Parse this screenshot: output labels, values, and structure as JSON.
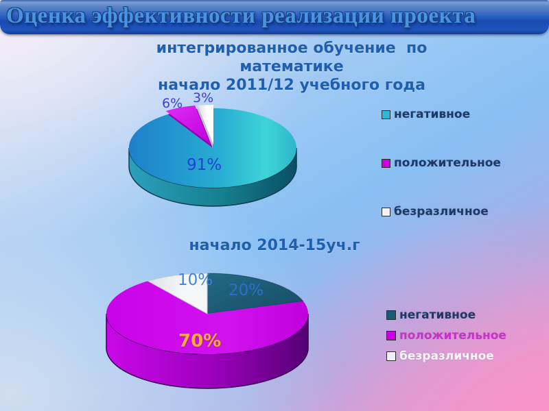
{
  "slide_title": "Оценка эффективности реализации проекта",
  "charts": [
    {
      "title": "интегрированное обучение  по\nматематике\nначало 2011/12 учебного года",
      "pct_labels": [
        "91%",
        "6%",
        "3%"
      ],
      "legend": [
        {
          "label": "негативное",
          "swatch": "#2fb6d9",
          "text_color": "#1d3a66"
        },
        {
          "label": "положительное",
          "swatch": "#cc00e6",
          "text_color": "#1d3a66"
        },
        {
          "label": "безразличное",
          "swatch": "#f2f2f2",
          "text_color": "#1d3a66"
        }
      ]
    },
    {
      "title": "начало 2014-15уч.г",
      "pct_labels": [
        "20%",
        "70%",
        "10%"
      ],
      "legend": [
        {
          "label": "негативное",
          "swatch": "#1b5a74",
          "text_color": "#1d3a66"
        },
        {
          "label": "положительное",
          "swatch": "#cc00e6",
          "text_color": "#c634c6"
        },
        {
          "label": "безразличное",
          "swatch": "#f0f0f2",
          "text_color": "#f5f5f7"
        }
      ]
    }
  ],
  "chart_data": [
    {
      "type": "pie",
      "style": "3d",
      "title": "интегрированное обучение по математике начало 2011/12 учебного года",
      "categories": [
        "негативное",
        "положительное",
        "безразличное"
      ],
      "values": [
        91,
        6,
        3
      ],
      "value_labels": [
        "91%",
        "6%",
        "3%"
      ],
      "colors": [
        "#29a8d2",
        "#cc00e6",
        "#f0f0f0"
      ],
      "legend_position": "right",
      "start_angle_deg": 0,
      "direction": "clockwise"
    },
    {
      "type": "pie",
      "style": "3d",
      "title": "начало 2014-15уч.г",
      "categories": [
        "негативное",
        "положительное",
        "безразличное"
      ],
      "values": [
        20,
        70,
        10
      ],
      "value_labels": [
        "20%",
        "70%",
        "10%"
      ],
      "colors": [
        "#1d5a75",
        "#cc00e6",
        "#eef0f2"
      ],
      "legend_position": "right",
      "start_angle_deg": 0,
      "direction": "clockwise"
    }
  ]
}
